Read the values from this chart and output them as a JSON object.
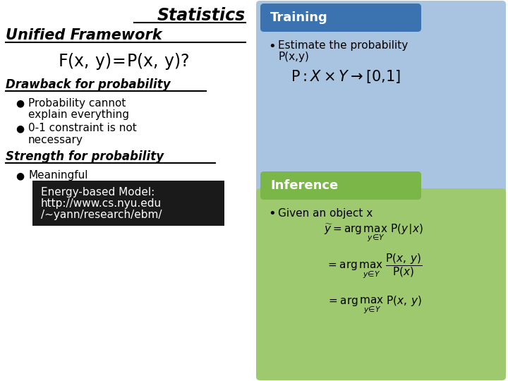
{
  "bg_color": "#ffffff",
  "right_top_bg": "#a8c4e0",
  "right_top_header_bg": "#3b72b0",
  "right_bottom_bg": "#9fc96e",
  "right_bottom_header_bg": "#7ab648",
  "ebm_bg": "#1a1a1a",
  "title_statistics": "Statistics",
  "title_unified": "Unified Framework",
  "drawback_title": "Drawback for probability",
  "bullet1a": "Probability cannot",
  "bullet1b": "explain everything",
  "bullet2a": "0-1 constraint is not",
  "bullet2b": "necessary",
  "strength_title": "Strength for probability",
  "bullet3": "Meaningful",
  "ebm_line1": "Energy-based Model:",
  "ebm_line2": "http://www.cs.nyu.edu",
  "ebm_line3": "/~yann/research/ebm/",
  "training_header": "Training",
  "training_bullet1": "Estimate the probability",
  "training_bullet2": "P(x,y)",
  "inference_header": "Inference",
  "inference_bullet": "Given an object x"
}
